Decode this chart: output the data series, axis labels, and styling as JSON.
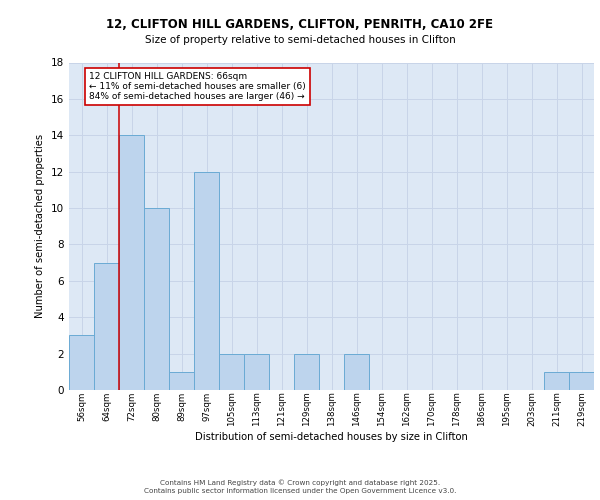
{
  "title_line1": "12, CLIFTON HILL GARDENS, CLIFTON, PENRITH, CA10 2FE",
  "title_line2": "Size of property relative to semi-detached houses in Clifton",
  "xlabel": "Distribution of semi-detached houses by size in Clifton",
  "ylabel": "Number of semi-detached properties",
  "footer_line1": "Contains HM Land Registry data © Crown copyright and database right 2025.",
  "footer_line2": "Contains public sector information licensed under the Open Government Licence v3.0.",
  "annotation_title": "12 CLIFTON HILL GARDENS: 66sqm",
  "annotation_line1": "← 11% of semi-detached houses are smaller (6)",
  "annotation_line2": "84% of semi-detached houses are larger (46) →",
  "bar_labels": [
    "56sqm",
    "64sqm",
    "72sqm",
    "80sqm",
    "89sqm",
    "97sqm",
    "105sqm",
    "113sqm",
    "121sqm",
    "129sqm",
    "138sqm",
    "146sqm",
    "154sqm",
    "162sqm",
    "170sqm",
    "178sqm",
    "186sqm",
    "195sqm",
    "203sqm",
    "211sqm",
    "219sqm"
  ],
  "bar_values": [
    3,
    7,
    14,
    10,
    1,
    12,
    2,
    2,
    0,
    2,
    0,
    2,
    0,
    0,
    0,
    0,
    0,
    0,
    0,
    1,
    1
  ],
  "bar_color": "#bdd4ed",
  "bar_edge_color": "#6aaad4",
  "vline_x": 1.5,
  "ylim": [
    0,
    18
  ],
  "yticks": [
    0,
    2,
    4,
    6,
    8,
    10,
    12,
    14,
    16,
    18
  ],
  "grid_color": "#c8d4e8",
  "background_color": "#dde8f5",
  "vline_color": "#cc0000",
  "title1_fontsize": 8.5,
  "title2_fontsize": 7.5,
  "footer_fontsize": 5.2,
  "tick_fontsize": 6.2,
  "ylabel_fontsize": 7.2,
  "xlabel_fontsize": 7.2,
  "ann_fontsize": 6.5
}
